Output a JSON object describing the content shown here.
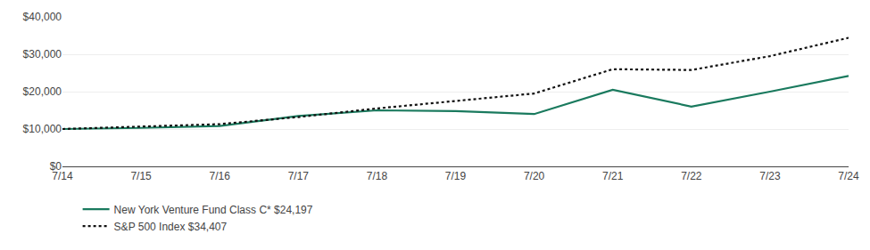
{
  "chart_data": {
    "type": "line",
    "categories": [
      "7/14",
      "7/15",
      "7/16",
      "7/17",
      "7/18",
      "7/19",
      "7/20",
      "7/21",
      "7/22",
      "7/23",
      "7/24"
    ],
    "series": [
      {
        "name": "New York Venture Fund Class C* $24,197",
        "color": "#1a7a5e",
        "line_style": "solid",
        "values": [
          10000,
          10300,
          10800,
          13500,
          15000,
          14800,
          14000,
          20500,
          16000,
          20000,
          24197
        ]
      },
      {
        "name": "S&P 500 Index $34,407",
        "color": "#111111",
        "line_style": "dotted",
        "values": [
          10000,
          10700,
          11300,
          13200,
          15500,
          17500,
          19500,
          26000,
          25800,
          29500,
          34407
        ]
      }
    ],
    "ylim": [
      0,
      40000
    ],
    "yticks": [
      {
        "value": 0,
        "label": "$0"
      },
      {
        "value": 10000,
        "label": "$10,000"
      },
      {
        "value": 20000,
        "label": "$20,000"
      },
      {
        "value": 30000,
        "label": "$30,000"
      },
      {
        "value": 40000,
        "label": "$40,000"
      }
    ],
    "grid": true,
    "legend": "bottom"
  }
}
